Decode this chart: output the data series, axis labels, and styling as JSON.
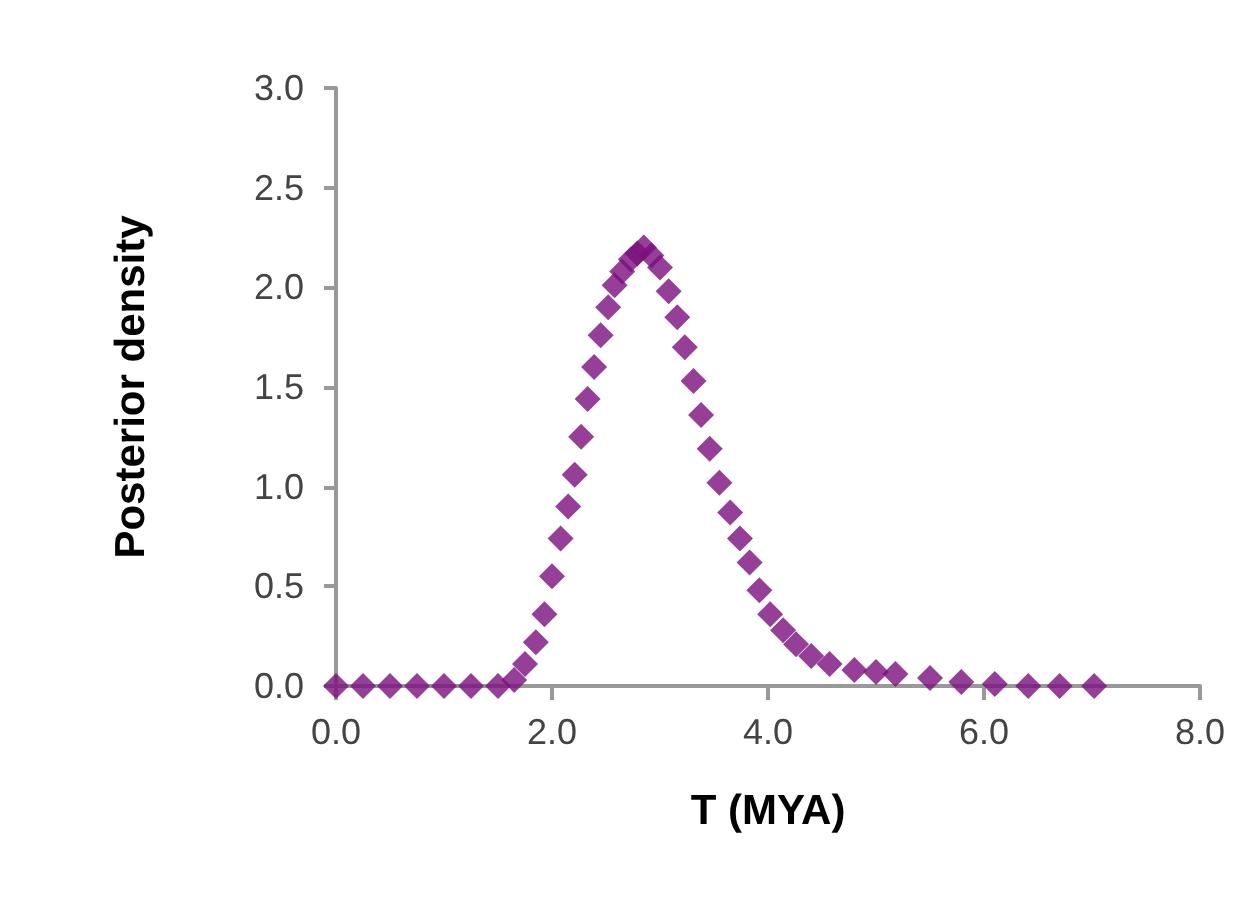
{
  "chart_data": {
    "type": "scatter",
    "xlabel": "T (MYA)",
    "ylabel": "Posterior density",
    "marker": "diamond",
    "grid": false,
    "xlim": [
      0,
      8
    ],
    "xticks": [
      {
        "value": 0,
        "label": "0.0"
      },
      {
        "value": 2,
        "label": "2.0"
      },
      {
        "value": 4,
        "label": "4.0"
      },
      {
        "value": 6,
        "label": "6.0"
      },
      {
        "value": 8,
        "label": "8.0"
      }
    ],
    "ylim": [
      0,
      3
    ],
    "yticks": [
      {
        "value": 0,
        "label": "0.0"
      },
      {
        "value": 0.5,
        "label": "0.5"
      },
      {
        "value": 1,
        "label": "1.0"
      },
      {
        "value": 1.5,
        "label": "1.5"
      },
      {
        "value": 2,
        "label": "2.0"
      },
      {
        "value": 2.5,
        "label": "2.5"
      },
      {
        "value": 3,
        "label": "3.0"
      }
    ],
    "series": [
      {
        "color": "#7b0f7e",
        "x": [
          0,
          0.25,
          0.5,
          0.75,
          1,
          1.25,
          1.5,
          1.65,
          1.75,
          1.85,
          1.93,
          2.0,
          2.08,
          2.15,
          2.21,
          2.27,
          2.33,
          2.39,
          2.45,
          2.52,
          2.58,
          2.65,
          2.73,
          2.79,
          2.85,
          2.92,
          3.0,
          3.08,
          3.16,
          3.23,
          3.31,
          3.38,
          3.46,
          3.55,
          3.65,
          3.74,
          3.83,
          3.92,
          4.02,
          4.14,
          4.26,
          4.4,
          4.57,
          4.8,
          5.0,
          5.18,
          5.5,
          5.79,
          6.1,
          6.41,
          6.7,
          7.02
        ],
        "values": [
          0,
          0,
          0,
          0,
          0,
          0,
          0,
          0.03,
          0.11,
          0.22,
          0.36,
          0.55,
          0.74,
          0.9,
          1.06,
          1.25,
          1.44,
          1.6,
          1.76,
          1.9,
          2.01,
          2.08,
          2.14,
          2.17,
          2.2,
          2.16,
          2.1,
          1.98,
          1.85,
          1.7,
          1.53,
          1.36,
          1.19,
          1.02,
          0.87,
          0.74,
          0.62,
          0.48,
          0.36,
          0.28,
          0.21,
          0.15,
          0.11,
          0.08,
          0.07,
          0.06,
          0.04,
          0.02,
          0.01,
          0,
          0,
          0
        ]
      }
    ]
  }
}
